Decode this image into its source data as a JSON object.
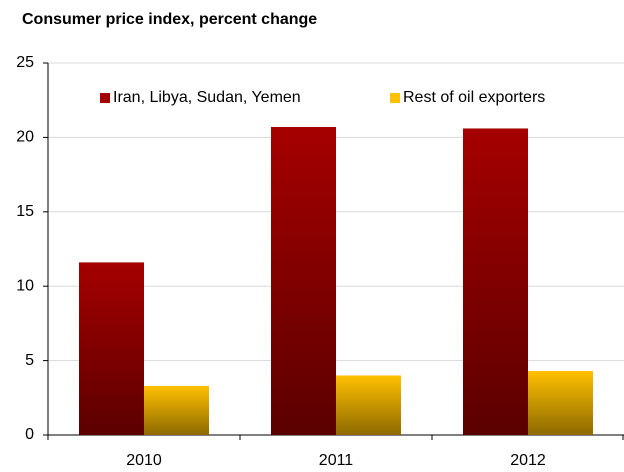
{
  "chart_data": {
    "type": "bar",
    "title": "Consumer price index, percent change",
    "categories": [
      "2010",
      "2011",
      "2012"
    ],
    "series": [
      {
        "name": "Iran, Libya, Sudan, Yemen",
        "color": "#a50000",
        "values": [
          11.6,
          20.7,
          20.6
        ]
      },
      {
        "name": "Rest of oil exporters",
        "color": "#ffc000",
        "values": [
          3.3,
          4.0,
          4.3
        ]
      }
    ],
    "ylim": [
      0,
      25
    ],
    "yticks": [
      0,
      5,
      10,
      15,
      20,
      25
    ],
    "grid": true,
    "legend": "top"
  }
}
